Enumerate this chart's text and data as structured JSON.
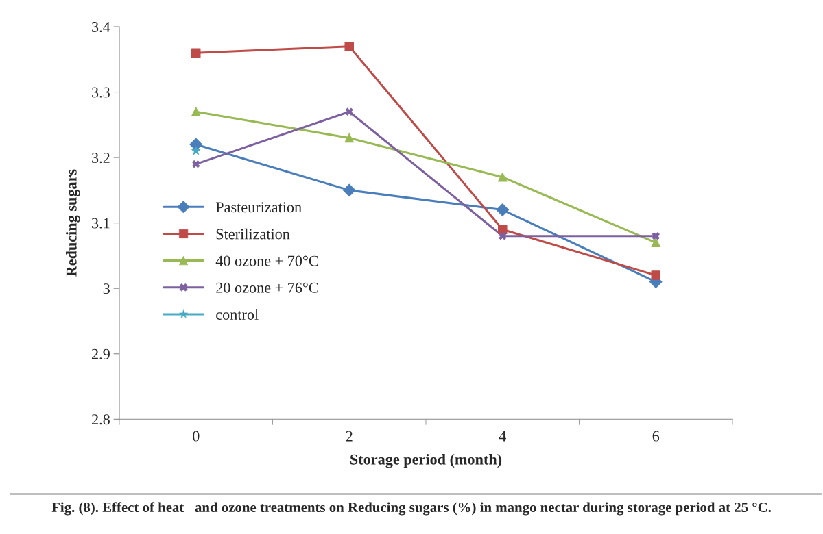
{
  "chart_data": {
    "type": "line",
    "xlabel": "Storage period (month)",
    "ylabel": "Reducing sugars",
    "categories": [
      "0",
      "2",
      "4",
      "6"
    ],
    "series": [
      {
        "name": "Pasteurization",
        "color": "#4a7ebb",
        "marker": "diamond",
        "values": [
          3.22,
          3.15,
          3.12,
          3.01
        ]
      },
      {
        "name": "Sterilization",
        "color": "#be4b48",
        "marker": "square",
        "values": [
          3.36,
          3.37,
          3.09,
          3.02
        ]
      },
      {
        "name": "40 ozone + 70°C",
        "color": "#98b954",
        "marker": "triangle",
        "values": [
          3.27,
          3.23,
          3.17,
          3.07
        ]
      },
      {
        "name": "20 ozone + 76°C",
        "color": "#7d60a0",
        "marker": "cross",
        "values": [
          3.19,
          3.27,
          3.08,
          3.08
        ]
      },
      {
        "name": "control",
        "color": "#46aac5",
        "marker": "star",
        "values": [
          3.21,
          null,
          null,
          null
        ]
      }
    ],
    "ylim": [
      2.8,
      3.4
    ],
    "yticks": [
      2.8,
      2.9,
      {
        "value": 3.0,
        "label": "3"
      },
      3.1,
      3.2,
      3.3,
      3.4
    ],
    "grid": false,
    "legend": "left",
    "annotations": [
      "Fig. (8). Effect of heat   and ozone treatments on Reducing sugars (%) in mango nectar during storage period at 25 °C."
    ]
  }
}
